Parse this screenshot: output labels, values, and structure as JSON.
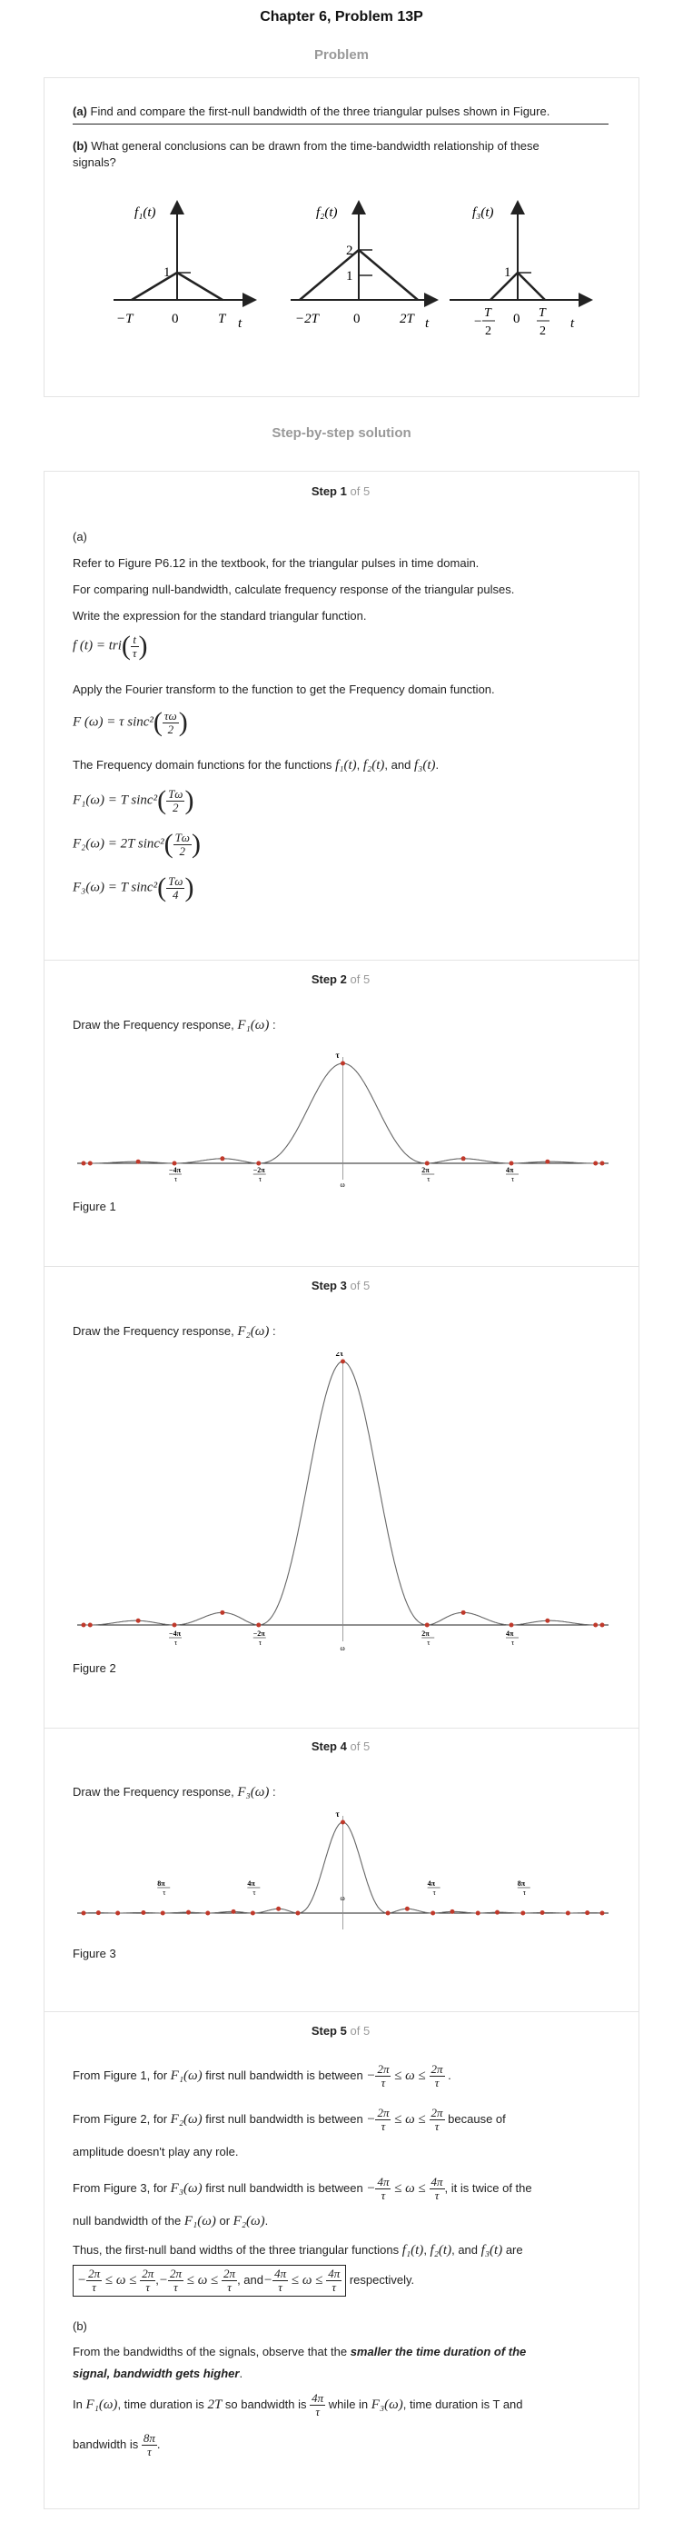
{
  "header": {
    "title": "Chapter 6, Problem 13P",
    "problem_heading": "Problem",
    "solution_heading": "Step-by-step solution"
  },
  "problem": {
    "part_a_label": "(a)",
    "part_a_text": " Find and compare the first-null bandwidth of the three triangular pulses shown in Figure.",
    "part_b_label": "(b)",
    "part_b_text_1": " What general conclusions can be drawn from the time-bandwidth relationship of these",
    "part_b_text_2": "signals?",
    "figure": {
      "f1": {
        "label": "f₁(t)",
        "peak": "1",
        "ticks": [
          "−T",
          "0",
          "T"
        ],
        "axis": "t"
      },
      "f2": {
        "label": "f₂(t)",
        "peak": "2",
        "mid": "1",
        "ticks": [
          "−2T",
          "0",
          "2T"
        ],
        "axis": "t"
      },
      "f3": {
        "label": "f₃(t)",
        "peak": "1",
        "ticks": [
          "−",
          "T",
          "2",
          "0",
          "T",
          "2"
        ],
        "axis": "t"
      }
    }
  },
  "steps": [
    {
      "num": "1",
      "of": "of 5",
      "lines": [
        "(a)",
        "Refer to Figure P6.12 in the textbook, for the triangular pulses in time domain.",
        "For comparing null-bandwidth, calculate frequency response of the triangular pulses.",
        "Write the expression for the standard triangular function.",
        "Apply the Fourier transform to the function to get the Frequency domain function.",
        "The Frequency domain functions for the functions"
      ],
      "eq_tri": {
        "lhs": "f (t) = tri",
        "num": "t",
        "den": "τ"
      },
      "eq_F": {
        "lhs": "F (ω) = τ sinc²",
        "num": "τω",
        "den": "2"
      },
      "funcs_inline": {
        "f1": "f₁(t)",
        "f2": "f₂(t)",
        "and": "and",
        "f3": "f₃(t)",
        "comma": ",",
        "period": "."
      },
      "eq_F1": {
        "lhs": "F₁(ω) = T sinc²",
        "num": "Tω",
        "den": "2"
      },
      "eq_F2": {
        "lhs": "F₂(ω) = 2T sinc²",
        "num": "Tω",
        "den": "2"
      },
      "eq_F3": {
        "lhs": "F₃(ω) = T sinc²",
        "num": "Tω",
        "den": "4"
      }
    },
    {
      "num": "2",
      "of": "of 5",
      "text": "Draw the Frequency response,",
      "func": "F₁(ω)",
      "colon": ":",
      "caption": "Figure 1",
      "plot": {
        "peak_label": "τ",
        "ticks": [
          "−4π/τ",
          "−2π/τ",
          "2π/τ",
          "4π/τ"
        ],
        "axis": "ω"
      }
    },
    {
      "num": "3",
      "of": "of 5",
      "text": "Draw the Frequency response,",
      "func": "F₂(ω)",
      "colon": ":",
      "caption": "Figure 2",
      "plot": {
        "peak_label": "2τ",
        "ticks": [
          "−4π/τ",
          "−2π/τ",
          "2π/τ",
          "4π/τ"
        ],
        "axis": "ω"
      }
    },
    {
      "num": "4",
      "of": "of 5",
      "text": "Draw the Frequency response,",
      "func": "F₃(ω)",
      "colon": ":",
      "caption": "Figure 3",
      "plot": {
        "peak_label": "τ",
        "ticks": [
          "8π/τ",
          "4π/τ",
          "4π/τ",
          "8π/τ"
        ],
        "axis": "ω"
      }
    },
    {
      "num": "5",
      "of": "of 5",
      "l1a": "From Figure 1, for",
      "l1f": "F₁(ω)",
      "l1b": "first null bandwidth is between",
      "l2a": "From Figure 2, for",
      "l2f": "F₂(ω)",
      "l2b": "first null bandwidth is between",
      "l2c": "because of",
      "l2d": "amplitude doesn't play any role.",
      "l3a": "From Figure 3, for",
      "l3f": "F₃(ω)",
      "l3b": "first null bandwidth is between",
      "l3c": ", it is twice of the",
      "l3d": "null bandwidth of the",
      "l3e": "or",
      "l4a": "Thus, the first-null band widths of the three triangular functions",
      "l4b": "are",
      "l4c": "respectively.",
      "l5": "(b)",
      "l6a": "From the bandwidths of the signals, observe that the",
      "l6b": "smaller the time duration of the",
      "l7": "signal, bandwidth gets higher",
      "l8a": "In",
      "l8b": ", time duration is",
      "l8c": "2T",
      "l8d": "so bandwidth is",
      "l8e": "while in",
      "l8f": ", time duration is T and",
      "l9": "bandwidth is"
    }
  ]
}
